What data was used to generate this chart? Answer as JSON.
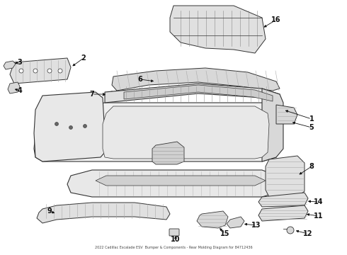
{
  "background_color": "#ffffff",
  "line_color": "#333333",
  "figsize": [
    4.9,
    3.6
  ],
  "dpi": 100,
  "title": "2022 Cadillac Escalade ESV  Bumper & Components - Rear Molding Diagram for 84712436"
}
